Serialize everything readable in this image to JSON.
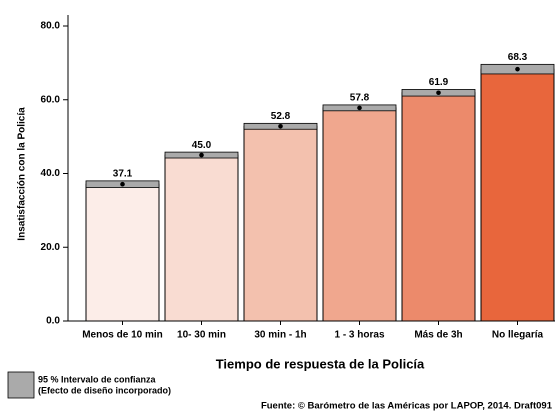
{
  "chart_data": {
    "type": "bar",
    "y_label": "Insatisfacción con la Policía",
    "x_label": "Tiempo de respuesta de la Policía",
    "categories": [
      "Menos de 10 min",
      "10- 30 min",
      "30 min - 1h",
      "1 - 3 horas",
      "Más de 3h",
      "No llegaría"
    ],
    "values": [
      37.1,
      45,
      52.8,
      57.8,
      61.9,
      68.3
    ],
    "value_labels": [
      "37.1",
      "45.0",
      "52.8",
      "57.8",
      "61.9",
      "68.3"
    ],
    "errors": [
      0.9,
      0.8,
      0.8,
      0.8,
      0.9,
      1.3
    ],
    "colors": [
      "#fcede8",
      "#f9dcd2",
      "#f3c1ae",
      "#f0a78e",
      "#ec8a6b",
      "#e8663c"
    ],
    "error_color": "#aaaaaa",
    "ylim": [
      0,
      80
    ],
    "yticks": [
      {
        "value": 0,
        "label": "0.0"
      },
      {
        "value": 20,
        "label": "20.0"
      },
      {
        "value": 40,
        "label": "40.0"
      },
      {
        "value": 60,
        "label": "60.0"
      },
      {
        "value": 80,
        "label": "80.0"
      }
    ],
    "legend": {
      "line1": "95 % Intervalo de confianza",
      "line2": "(Efecto de diseño incorporado)"
    },
    "source": "Fuente: © Barómetro de las Américas por LAPOP, 2014. Draft091"
  }
}
